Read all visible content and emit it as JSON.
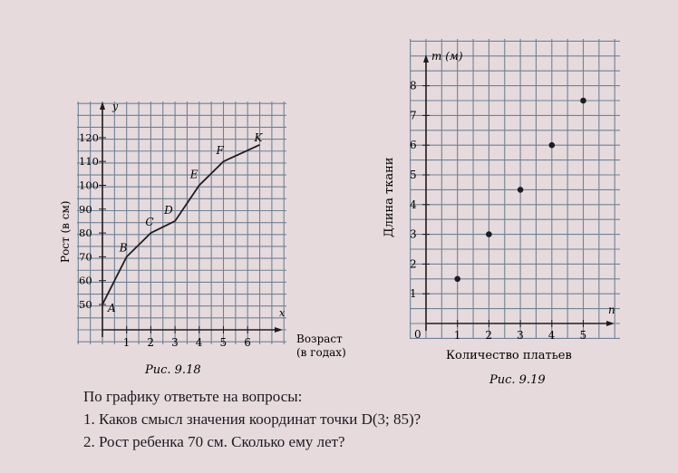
{
  "chart_data": [
    {
      "type": "line",
      "figure_caption": "Рис. 9.18",
      "ylabel": "Рост (в см)",
      "xlabel": "Возраст (в годах)",
      "x_axis_letter": "x",
      "y_axis_letter": "y",
      "x_ticks": [
        1,
        2,
        3,
        4,
        5,
        6
      ],
      "y_ticks": [
        50,
        60,
        70,
        80,
        90,
        100,
        110,
        120
      ],
      "grid": true,
      "points": [
        {
          "label": "A",
          "x": 0,
          "y": 50
        },
        {
          "label": "B",
          "x": 1,
          "y": 70
        },
        {
          "label": "C",
          "x": 2,
          "y": 80
        },
        {
          "label": "D",
          "x": 3,
          "y": 85
        },
        {
          "label": "E",
          "x": 4,
          "y": 100
        },
        {
          "label": "F",
          "x": 5,
          "y": 110
        },
        {
          "label": "K",
          "x": 6.5,
          "y": 117
        }
      ]
    },
    {
      "type": "scatter",
      "figure_caption": "Рис. 9.19",
      "ylabel": "Длина ткани",
      "xlabel": "Количество платьев",
      "x_axis_letter": "n",
      "y_axis_letter": "m (м)",
      "origin_label": "0",
      "x_ticks": [
        1,
        2,
        3,
        4,
        5
      ],
      "y_ticks": [
        1,
        2,
        3,
        4,
        5,
        6,
        7,
        8
      ],
      "grid": true,
      "points": [
        {
          "x": 1,
          "y": 1.5
        },
        {
          "x": 2,
          "y": 3
        },
        {
          "x": 3,
          "y": 4.5
        },
        {
          "x": 4,
          "y": 6
        },
        {
          "x": 5,
          "y": 7.5
        }
      ]
    }
  ],
  "questions": {
    "intro": "По графику ответьте на вопросы:",
    "q1": "1. Каков смысл значения координат точки D(3; 85)?",
    "q2": "2. Рост ребенка 70 см. Сколько ему лет?"
  },
  "colors": {
    "grid": "#6f8294",
    "ink": "#1e1c22",
    "paper": "#e6dadd"
  }
}
